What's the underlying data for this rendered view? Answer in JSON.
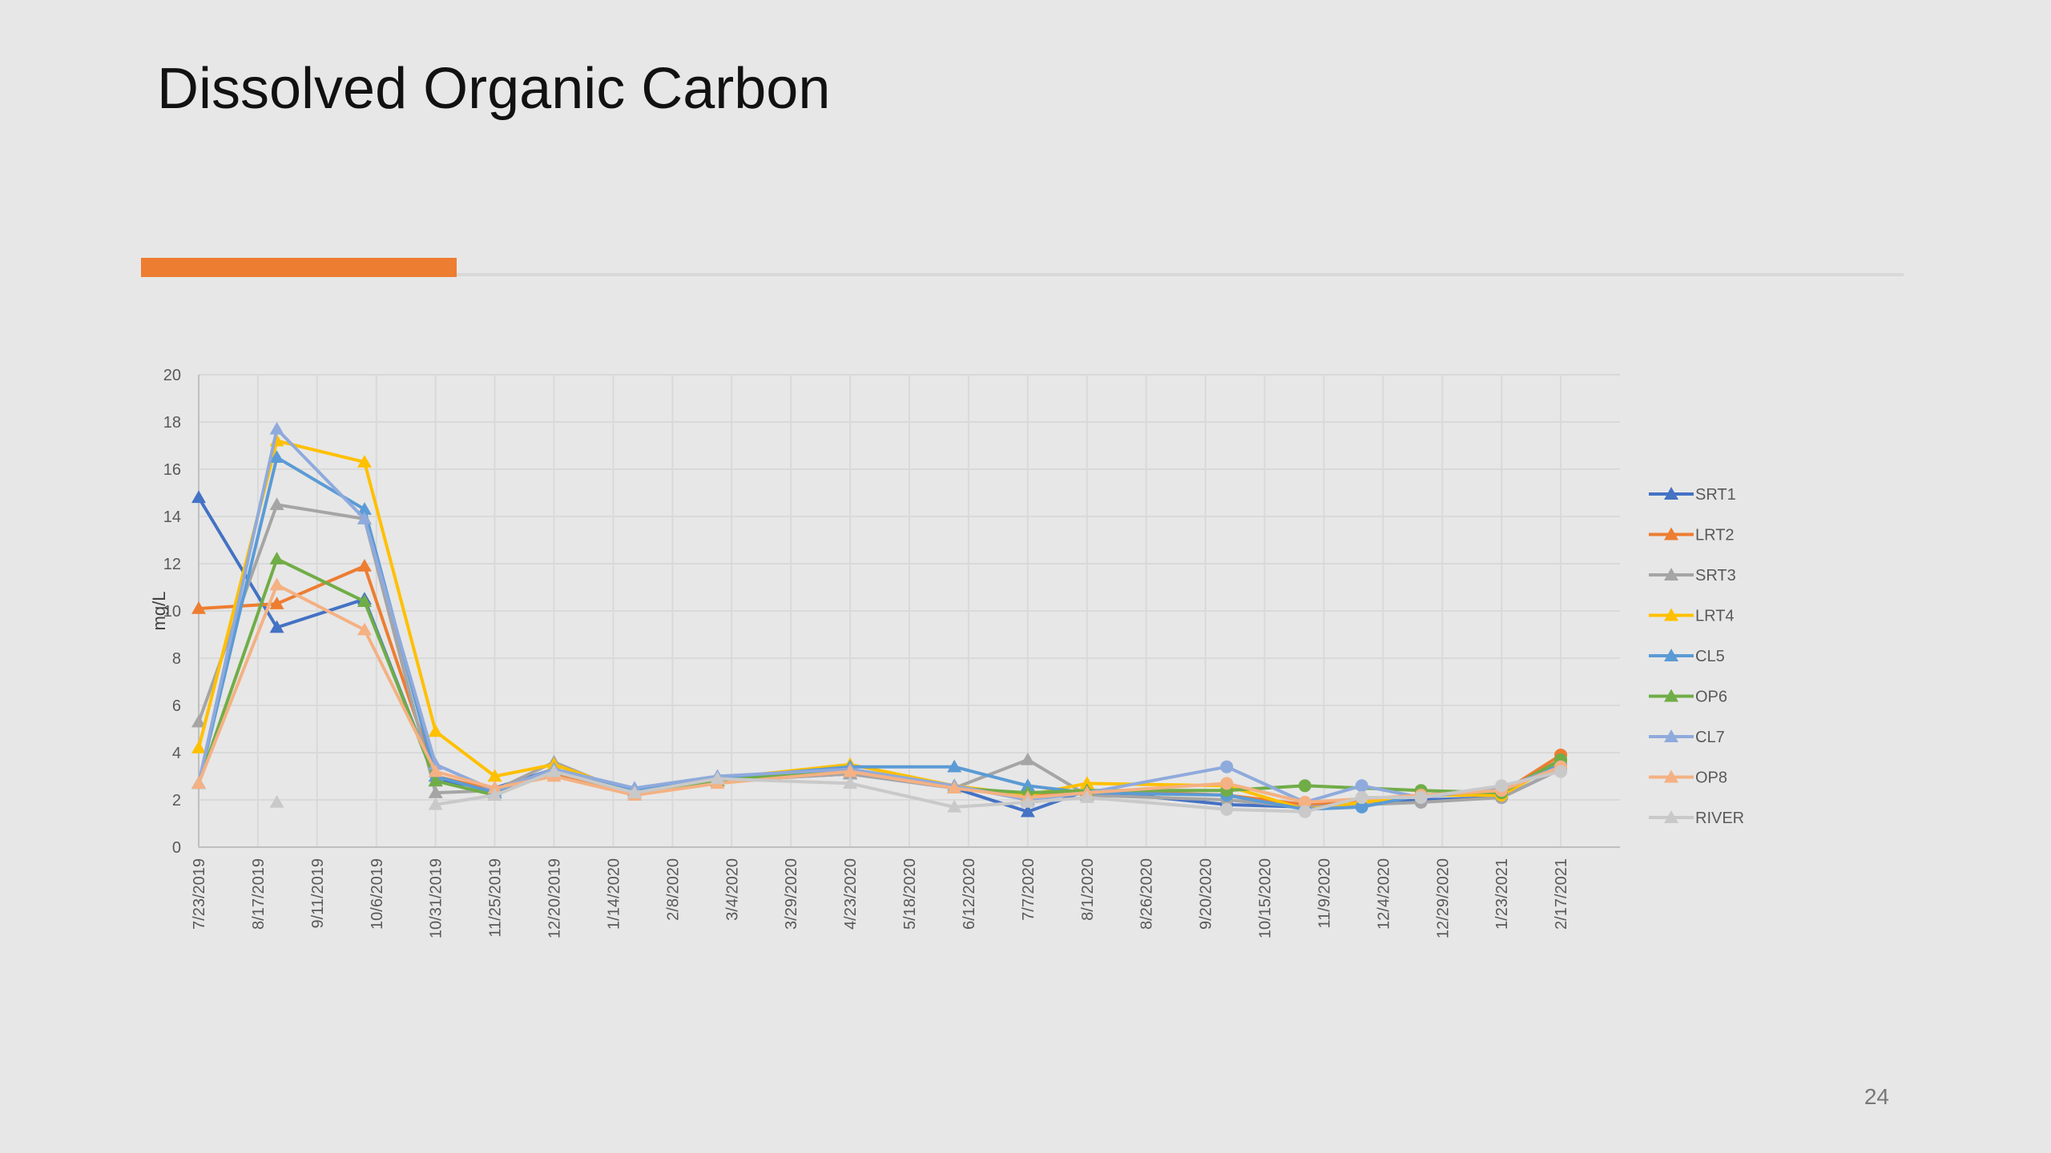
{
  "slide": {
    "title": "Dissolved Organic Carbon",
    "page_number": "24"
  },
  "chart_data": {
    "type": "line",
    "title": "",
    "xlabel": "",
    "ylabel": "mg/L",
    "ylim": [
      0,
      20
    ],
    "yticks": [
      0,
      2,
      4,
      6,
      8,
      10,
      12,
      14,
      16,
      18,
      20
    ],
    "x_tick_labels": [
      "7/23/2019",
      "8/17/2019",
      "9/11/2019",
      "10/6/2019",
      "10/31/2019",
      "11/25/2019",
      "12/20/2019",
      "1/14/2020",
      "2/8/2020",
      "3/4/2020",
      "3/29/2020",
      "4/23/2020",
      "5/18/2020",
      "6/12/2020",
      "7/7/2020",
      "8/1/2020",
      "8/26/2020",
      "9/20/2020",
      "10/15/2020",
      "11/9/2020",
      "12/4/2020",
      "12/29/2020",
      "1/23/2021",
      "2/17/2021"
    ],
    "x_range": [
      "7/23/2019",
      "3/14/2021"
    ],
    "grid": true,
    "legend_position": "right",
    "series": [
      {
        "name": "SRT1",
        "color": "#4472c4",
        "points": [
          [
            "7/23/2019",
            14.8
          ],
          [
            "8/25/2019",
            9.3
          ],
          [
            "10/1/2019",
            10.5
          ],
          [
            "10/31/2019",
            2.8
          ],
          [
            "11/25/2019",
            2.5
          ],
          [
            "12/20/2019",
            3.3
          ],
          [
            "1/23/2020",
            2.3
          ],
          [
            "2/27/2020",
            2.8
          ],
          [
            "4/23/2020",
            3.1
          ],
          [
            "6/6/2020",
            2.5
          ],
          [
            "7/7/2020",
            1.5
          ],
          [
            "8/1/2020",
            2.4
          ],
          [
            "9/29/2020",
            1.8
          ],
          [
            "11/1/2020",
            1.7
          ],
          [
            "12/20/2020",
            2.0
          ],
          [
            "1/23/2021",
            2.1
          ],
          [
            "2/17/2021",
            3.3
          ]
        ]
      },
      {
        "name": "LRT2",
        "color": "#ed7d31",
        "points": [
          [
            "7/23/2019",
            10.1
          ],
          [
            "8/25/2019",
            10.3
          ],
          [
            "10/1/2019",
            11.9
          ],
          [
            "10/31/2019",
            3.0
          ],
          [
            "11/25/2019",
            2.4
          ],
          [
            "12/20/2019",
            3.1
          ],
          [
            "1/23/2020",
            2.3
          ],
          [
            "2/27/2020",
            2.8
          ],
          [
            "4/23/2020",
            3.2
          ],
          [
            "6/6/2020",
            2.5
          ],
          [
            "7/7/2020",
            2.2
          ],
          [
            "8/1/2020",
            2.4
          ],
          [
            "9/29/2020",
            2.2
          ],
          [
            "11/1/2020",
            1.8
          ],
          [
            "12/20/2020",
            2.2
          ],
          [
            "1/23/2021",
            2.3
          ],
          [
            "2/17/2021",
            3.9
          ]
        ]
      },
      {
        "name": "SRT3",
        "color": "#a5a5a5",
        "points": [
          [
            "7/23/2019",
            5.3
          ],
          [
            "8/25/2019",
            14.5
          ],
          [
            "10/1/2019",
            13.9
          ],
          [
            "10/31/2019",
            2.3
          ],
          [
            "11/25/2019",
            2.4
          ],
          [
            "12/20/2019",
            3.6
          ],
          [
            "1/23/2020",
            2.2
          ],
          [
            "2/27/2020",
            2.8
          ],
          [
            "4/23/2020",
            3.1
          ],
          [
            "6/6/2020",
            2.5
          ],
          [
            "7/7/2020",
            3.7
          ],
          [
            "8/1/2020",
            2.2
          ],
          [
            "9/29/2020",
            2.0
          ],
          [
            "11/1/2020",
            1.7
          ],
          [
            "12/20/2020",
            1.9
          ],
          [
            "1/23/2021",
            2.1
          ],
          [
            "2/17/2021",
            3.3
          ]
        ]
      },
      {
        "name": "LRT4",
        "color": "#ffc000",
        "points": [
          [
            "7/23/2019",
            4.2
          ],
          [
            "8/25/2019",
            17.2
          ],
          [
            "10/1/2019",
            16.3
          ],
          [
            "10/31/2019",
            4.9
          ],
          [
            "11/25/2019",
            3.0
          ],
          [
            "12/20/2019",
            3.5
          ],
          [
            "1/23/2020",
            2.3
          ],
          [
            "2/27/2020",
            2.9
          ],
          [
            "4/23/2020",
            3.5
          ],
          [
            "6/6/2020",
            2.6
          ],
          [
            "7/7/2020",
            2.2
          ],
          [
            "8/1/2020",
            2.7
          ],
          [
            "9/29/2020",
            2.6
          ],
          [
            "11/1/2020",
            1.6
          ],
          [
            "12/20/2020",
            2.2
          ],
          [
            "1/23/2021",
            2.2
          ],
          [
            "2/17/2021",
            3.6
          ]
        ]
      },
      {
        "name": "CL5",
        "color": "#5b9bd5",
        "points": [
          [
            "7/23/2019",
            2.7
          ],
          [
            "8/25/2019",
            16.5
          ],
          [
            "10/1/2019",
            14.3
          ],
          [
            "10/31/2019",
            3.0
          ],
          [
            "11/25/2019",
            2.3
          ],
          [
            "12/20/2019",
            3.3
          ],
          [
            "1/23/2020",
            2.4
          ],
          [
            "2/27/2020",
            2.9
          ],
          [
            "4/23/2020",
            3.4
          ],
          [
            "6/6/2020",
            3.4
          ],
          [
            "7/7/2020",
            2.6
          ],
          [
            "8/1/2020",
            2.3
          ],
          [
            "9/29/2020",
            2.2
          ],
          [
            "11/1/2020",
            1.6
          ],
          [
            "11/25/2020",
            1.7
          ],
          [
            "12/20/2020",
            2.2
          ],
          [
            "1/23/2021",
            2.4
          ],
          [
            "2/17/2021",
            3.5
          ]
        ]
      },
      {
        "name": "OP6",
        "color": "#70ad47",
        "points": [
          [
            "7/23/2019",
            2.7
          ],
          [
            "8/25/2019",
            12.2
          ],
          [
            "10/1/2019",
            10.4
          ],
          [
            "10/31/2019",
            2.8
          ],
          [
            "11/25/2019",
            2.2
          ],
          [
            "12/20/2019",
            3.2
          ],
          [
            "1/23/2020",
            2.3
          ],
          [
            "2/27/2020",
            2.8
          ],
          [
            "4/23/2020",
            3.3
          ],
          [
            "6/6/2020",
            2.5
          ],
          [
            "7/7/2020",
            2.3
          ],
          [
            "8/1/2020",
            2.4
          ],
          [
            "9/29/2020",
            2.4
          ],
          [
            "11/1/2020",
            2.6
          ],
          [
            "12/20/2020",
            2.4
          ],
          [
            "1/23/2021",
            2.3
          ],
          [
            "2/17/2021",
            3.7
          ]
        ]
      },
      {
        "name": "CL7",
        "color": "#8faadc",
        "points": [
          [
            "7/23/2019",
            2.7
          ],
          [
            "8/25/2019",
            17.7
          ],
          [
            "10/1/2019",
            13.9
          ],
          [
            "10/31/2019",
            3.5
          ],
          [
            "11/25/2019",
            2.4
          ],
          [
            "12/20/2019",
            3.3
          ],
          [
            "1/23/2020",
            2.5
          ],
          [
            "2/27/2020",
            3.0
          ],
          [
            "4/23/2020",
            3.3
          ],
          [
            "6/6/2020",
            2.6
          ],
          [
            "7/7/2020",
            2.0
          ],
          [
            "8/1/2020",
            2.3
          ],
          [
            "9/29/2020",
            3.4
          ],
          [
            "11/1/2020",
            1.9
          ],
          [
            "11/25/2020",
            2.6
          ],
          [
            "12/20/2020",
            2.1
          ],
          [
            "1/23/2021",
            2.5
          ],
          [
            "2/17/2021",
            3.4
          ]
        ]
      },
      {
        "name": "OP8",
        "color": "#f4b183",
        "points": [
          [
            "7/23/2019",
            2.7
          ],
          [
            "8/25/2019",
            11.1
          ],
          [
            "10/1/2019",
            9.2
          ],
          [
            "10/31/2019",
            3.2
          ],
          [
            "11/25/2019",
            2.5
          ],
          [
            "12/20/2019",
            3.0
          ],
          [
            "1/23/2020",
            2.2
          ],
          [
            "2/27/2020",
            2.7
          ],
          [
            "4/23/2020",
            3.2
          ],
          [
            "6/6/2020",
            2.5
          ],
          [
            "7/7/2020",
            2.1
          ],
          [
            "8/1/2020",
            2.3
          ],
          [
            "9/29/2020",
            2.7
          ],
          [
            "11/1/2020",
            1.9
          ],
          [
            "12/20/2020",
            2.2
          ],
          [
            "1/23/2021",
            2.4
          ],
          [
            "2/17/2021",
            3.4
          ]
        ]
      },
      {
        "name": "RIVER",
        "color": "#c9c9c9",
        "points": [
          [
            "8/25/2019",
            1.9
          ],
          [
            "10/31/2019",
            1.8
          ],
          [
            "11/25/2019",
            2.2
          ],
          [
            "12/20/2019",
            3.2
          ],
          [
            "1/23/2020",
            2.3
          ],
          [
            "2/27/2020",
            2.9
          ],
          [
            "4/23/2020",
            2.7
          ],
          [
            "6/6/2020",
            1.7
          ],
          [
            "7/7/2020",
            1.9
          ],
          [
            "8/1/2020",
            2.1
          ],
          [
            "9/29/2020",
            1.6
          ],
          [
            "11/1/2020",
            1.5
          ],
          [
            "11/25/2020",
            2.1
          ],
          [
            "12/20/2020",
            2.1
          ],
          [
            "1/23/2021",
            2.6
          ],
          [
            "2/17/2021",
            3.2
          ]
        ]
      }
    ]
  }
}
